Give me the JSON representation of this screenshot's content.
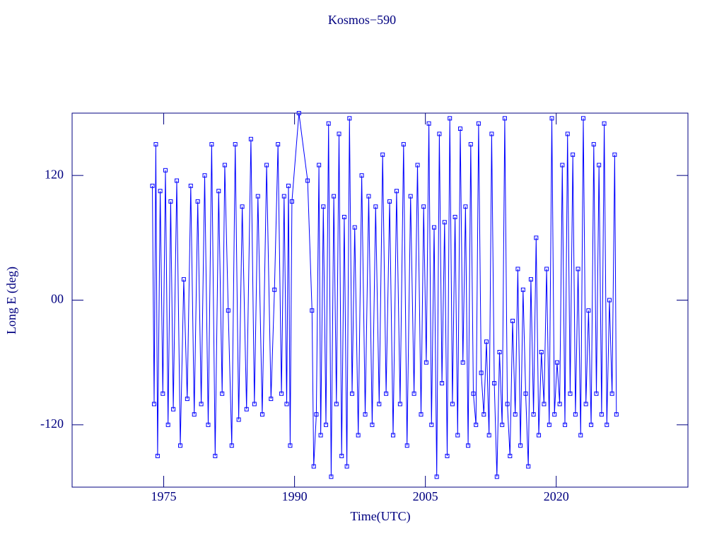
{
  "chart_data": {
    "type": "line",
    "title": "Kosmos−590",
    "xlabel": "Time(UTC)",
    "ylabel": "Long E (deg)",
    "color": "#0000ff",
    "axis_color": "#000080",
    "marker": "square",
    "xlim": [
      1964.5,
      2035.1
    ],
    "xticks": [
      1975,
      1990,
      2005,
      2020
    ],
    "ylim": [
      -180,
      180
    ],
    "yticks": [
      -120,
      {
        "value": 0,
        "label": "00"
      },
      120
    ],
    "x": [
      1973.7,
      1973.9,
      1974.1,
      1974.3,
      1974.6,
      1974.9,
      1975.2,
      1975.5,
      1975.8,
      1976.1,
      1976.5,
      1976.9,
      1977.3,
      1977.7,
      1978.1,
      1978.5,
      1978.9,
      1979.3,
      1979.7,
      1980.1,
      1980.5,
      1980.9,
      1981.3,
      1981.7,
      1982.0,
      1982.4,
      1982.8,
      1983.2,
      1983.6,
      1984.0,
      1984.5,
      1985.0,
      1985.4,
      1985.8,
      1986.3,
      1986.8,
      1987.3,
      1987.7,
      1988.1,
      1988.5,
      1988.8,
      1989.1,
      1989.3,
      1989.5,
      1989.7,
      1990.5,
      1991.5,
      1992.0,
      1992.2,
      1992.5,
      1992.8,
      1993.0,
      1993.3,
      1993.6,
      1993.9,
      1994.2,
      1994.5,
      1994.8,
      1995.1,
      1995.4,
      1995.7,
      1996.0,
      1996.3,
      1996.6,
      1996.9,
      1997.3,
      1997.7,
      1998.1,
      1998.5,
      1998.9,
      1999.3,
      1999.7,
      2000.1,
      2000.5,
      2000.9,
      2001.3,
      2001.7,
      2002.1,
      2002.5,
      2002.9,
      2003.3,
      2003.7,
      2004.1,
      2004.5,
      2004.8,
      2005.1,
      2005.4,
      2005.7,
      2006.0,
      2006.3,
      2006.6,
      2006.9,
      2007.2,
      2007.5,
      2007.8,
      2008.1,
      2008.4,
      2008.7,
      2009.0,
      2009.3,
      2009.6,
      2009.9,
      2010.2,
      2010.5,
      2010.8,
      2011.1,
      2011.4,
      2011.7,
      2012.0,
      2012.3,
      2012.6,
      2012.9,
      2013.2,
      2013.5,
      2013.8,
      2014.1,
      2014.4,
      2014.7,
      2015.0,
      2015.3,
      2015.6,
      2015.9,
      2016.2,
      2016.5,
      2016.8,
      2017.1,
      2017.4,
      2017.7,
      2018.0,
      2018.3,
      2018.6,
      2018.9,
      2019.2,
      2019.5,
      2019.8,
      2020.1,
      2020.4,
      2020.7,
      2021.0,
      2021.3,
      2021.6,
      2021.9,
      2022.2,
      2022.5,
      2022.8,
      2023.1,
      2023.4,
      2023.7,
      2024.0,
      2024.3,
      2024.6,
      2024.9,
      2025.2,
      2025.5,
      2025.8,
      2026.1,
      2026.4,
      2026.7,
      2026.9
    ],
    "values": [
      110,
      -100,
      150,
      -150,
      105,
      -90,
      125,
      -120,
      95,
      -105,
      115,
      -140,
      20,
      -95,
      110,
      -110,
      95,
      -100,
      120,
      -120,
      150,
      -150,
      105,
      -90,
      130,
      -10,
      -140,
      150,
      -115,
      90,
      -105,
      155,
      -100,
      100,
      -110,
      130,
      -95,
      10,
      150,
      -90,
      100,
      -100,
      110,
      -140,
      95,
      180,
      115,
      -10,
      -160,
      -110,
      130,
      -130,
      90,
      -120,
      170,
      -170,
      100,
      -100,
      160,
      -150,
      80,
      -160,
      175,
      -90,
      70,
      -130,
      120,
      -110,
      100,
      -120,
      90,
      -100,
      140,
      -90,
      95,
      -130,
      105,
      -100,
      150,
      -140,
      100,
      -90,
      130,
      -110,
      90,
      -60,
      170,
      -120,
      70,
      -170,
      160,
      -80,
      75,
      -150,
      175,
      -100,
      80,
      -130,
      165,
      -60,
      90,
      -140,
      150,
      -90,
      -120,
      170,
      -70,
      -110,
      -40,
      -130,
      160,
      -80,
      -170,
      -50,
      -120,
      175,
      -100,
      -150,
      -20,
      -110,
      30,
      -140,
      10,
      -90,
      -160,
      20,
      -110,
      60,
      -130,
      -50,
      -100,
      30,
      -120,
      175,
      -110,
      -60,
      -100,
      130,
      -120,
      160,
      -90,
      140,
      -110,
      30,
      -130,
      175,
      -100,
      -10,
      -120,
      150,
      -90,
      130,
      -110,
      170,
      -120,
      0,
      -90,
      140,
      -110
    ]
  }
}
